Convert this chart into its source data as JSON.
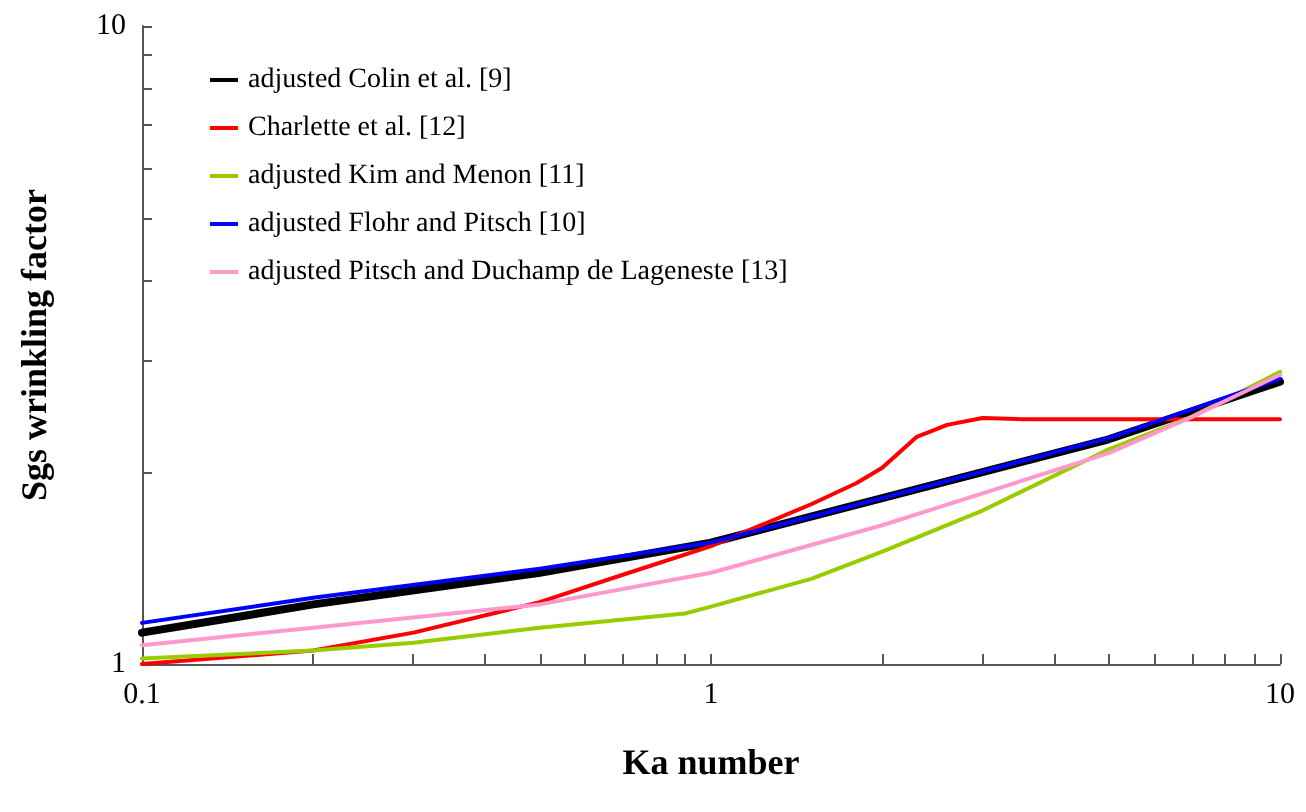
{
  "chart_data": {
    "type": "line",
    "xlabel": "Ka number",
    "ylabel": "Sgs wrinkling factor",
    "log": "xy",
    "legend": "top left",
    "grid": false,
    "marker": "none",
    "line_style": "solid",
    "xlim": [
      0.1,
      10
    ],
    "ylim": [
      1,
      10
    ],
    "xticks": [
      0.1,
      {
        "value": 0.2,
        "label": null
      },
      {
        "value": 0.3,
        "label": null
      },
      {
        "value": 0.4,
        "label": null
      },
      {
        "value": 0.5,
        "label": null
      },
      {
        "value": 0.6,
        "label": null
      },
      {
        "value": 0.7,
        "label": null
      },
      {
        "value": 0.8,
        "label": null
      },
      {
        "value": 0.9,
        "label": null
      },
      1,
      {
        "value": 2,
        "label": null
      },
      {
        "value": 3,
        "label": null
      },
      {
        "value": 4,
        "label": null
      },
      {
        "value": 5,
        "label": null
      },
      {
        "value": 6,
        "label": null
      },
      {
        "value": 7,
        "label": null
      },
      {
        "value": 8,
        "label": null
      },
      {
        "value": 9,
        "label": null
      },
      10
    ],
    "yticks": [
      1,
      {
        "value": 2,
        "label": null
      },
      {
        "value": 3,
        "label": null
      },
      {
        "value": 4,
        "label": null
      },
      {
        "value": 5,
        "label": null
      },
      {
        "value": 6,
        "label": null
      },
      {
        "value": 7,
        "label": null
      },
      {
        "value": 8,
        "label": null
      },
      {
        "value": 9,
        "label": null
      },
      10
    ],
    "series": [
      {
        "name": "adjusted Colin et al. [9]",
        "color": "#000000",
        "x": [
          0.1,
          0.2,
          0.5,
          1,
          2,
          5,
          10
        ],
        "values": [
          1.12,
          1.24,
          1.39,
          1.55,
          1.82,
          2.25,
          2.77
        ]
      },
      {
        "name": "Charlette et al. [12]",
        "color": "#ff0000",
        "x": [
          0.1,
          0.2,
          0.3,
          0.5,
          0.7,
          1,
          1.5,
          1.8,
          2,
          2.3,
          2.6,
          3,
          3.5,
          10
        ],
        "values": [
          1.0,
          1.05,
          1.12,
          1.25,
          1.38,
          1.53,
          1.78,
          1.92,
          2.03,
          2.27,
          2.37,
          2.43,
          2.42,
          2.42
        ]
      },
      {
        "name": "adjusted Kim and Menon [11]",
        "color": "#99cc00",
        "x": [
          0.1,
          0.2,
          0.3,
          0.5,
          0.9,
          1,
          1.5,
          2,
          3,
          5,
          7,
          10
        ],
        "values": [
          1.02,
          1.05,
          1.08,
          1.14,
          1.2,
          1.23,
          1.36,
          1.5,
          1.74,
          2.17,
          2.44,
          2.87
        ]
      },
      {
        "name": "adjusted Flohr and Pitsch [10]",
        "color": "#0000ff",
        "x": [
          0.1,
          0.2,
          0.5,
          1,
          2,
          5,
          10
        ],
        "values": [
          1.16,
          1.27,
          1.41,
          1.55,
          1.82,
          2.26,
          2.8
        ]
      },
      {
        "name": "adjusted Pitsch and Duchamp de Lageneste [13]",
        "color": "#ff99cc",
        "x": [
          0.1,
          0.2,
          0.5,
          1,
          2,
          5,
          7,
          10
        ],
        "values": [
          1.07,
          1.14,
          1.24,
          1.39,
          1.65,
          2.14,
          2.44,
          2.84
        ]
      }
    ]
  }
}
